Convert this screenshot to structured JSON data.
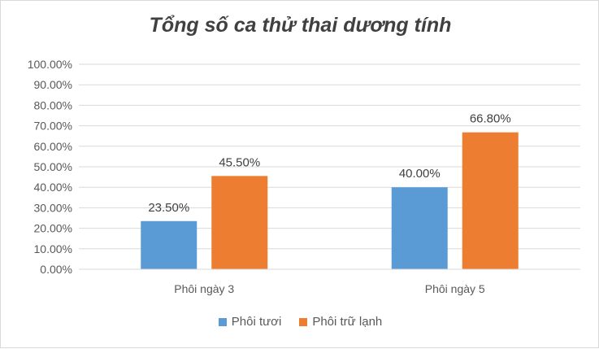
{
  "chart_data": {
    "type": "bar",
    "title": "Tổng số ca thử thai dương tính",
    "categories": [
      "Phôi ngày 3",
      "Phôi ngày 5"
    ],
    "series": [
      {
        "name": "Phôi tươi",
        "values": [
          23.5,
          40.0
        ],
        "labels": [
          "23.50%",
          "40.00%"
        ],
        "color": "#5b9bd5"
      },
      {
        "name": "Phôi trữ lạnh",
        "values": [
          45.5,
          66.8
        ],
        "labels": [
          "45.50%",
          "66.80%"
        ],
        "color": "#ed7d31"
      }
    ],
    "ylim": [
      0,
      100
    ],
    "yticks": [
      "0.00%",
      "10.00%",
      "20.00%",
      "30.00%",
      "40.00%",
      "50.00%",
      "60.00%",
      "70.00%",
      "80.00%",
      "90.00%",
      "100.00%"
    ],
    "grid": true,
    "legend": "bottom"
  }
}
